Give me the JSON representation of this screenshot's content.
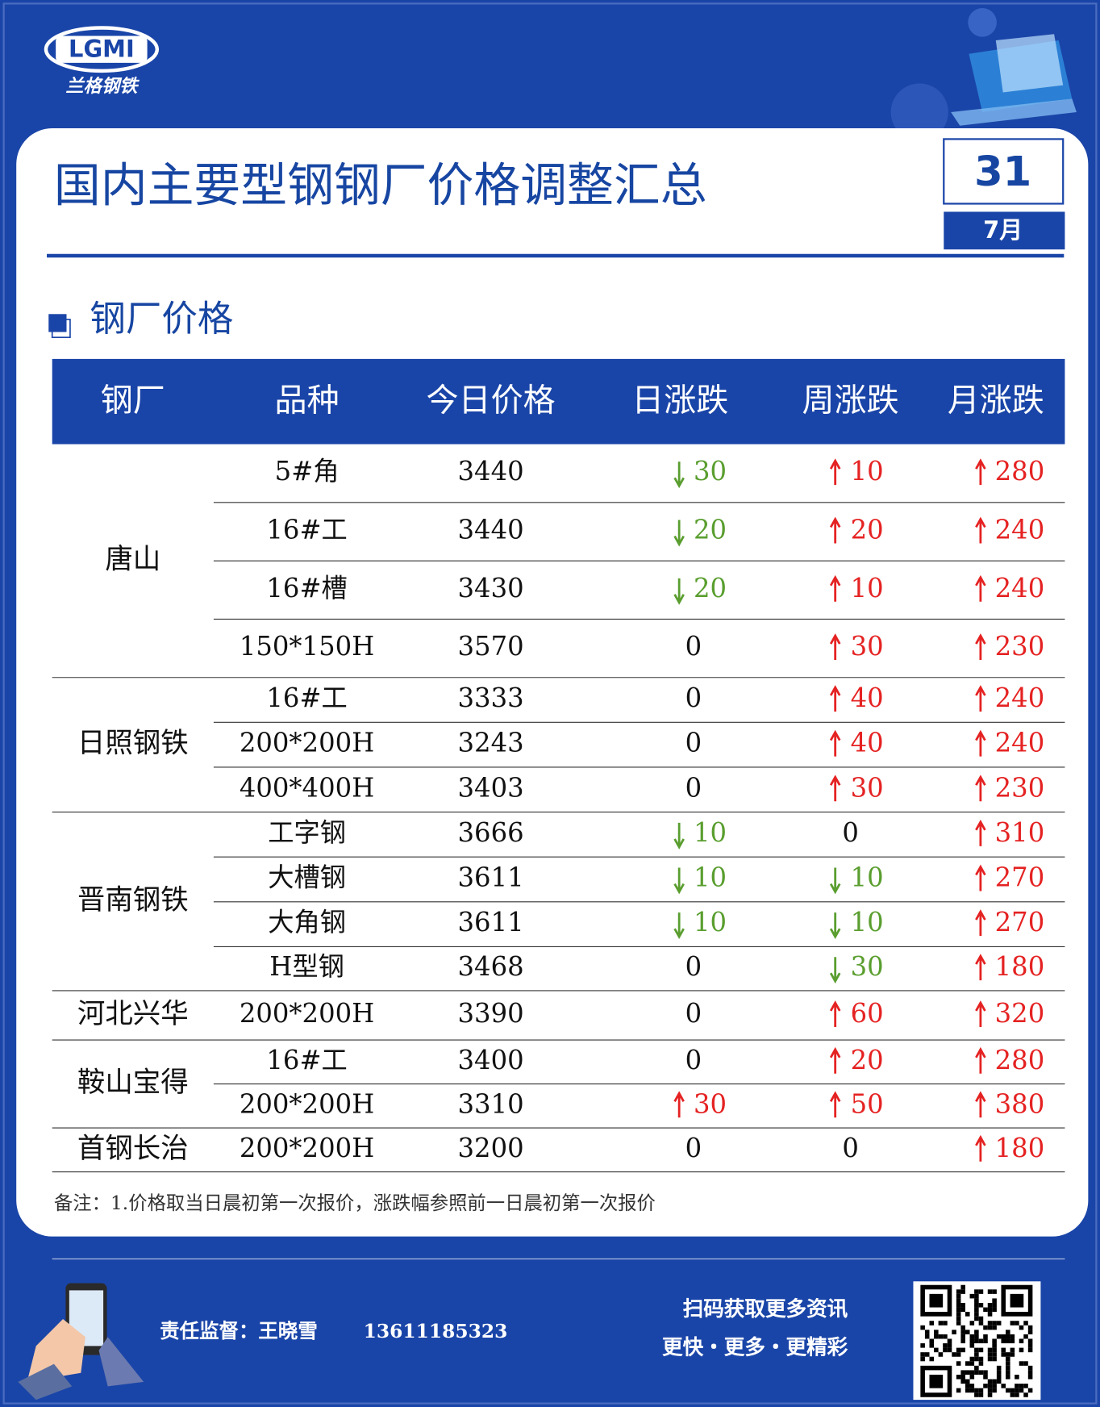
{
  "header": {
    "logo_text": "LGMI",
    "logo_sub": "兰格钢铁",
    "title": "国内主要型钢钢厂价格调整汇总",
    "day": "31",
    "month": "7月"
  },
  "section_title": "钢厂价格",
  "table": {
    "columns": [
      "钢厂",
      "品种",
      "今日价格",
      "日涨跌",
      "周涨跌",
      "月涨跌"
    ],
    "groups": [
      {
        "mill": "唐山",
        "rows": [
          [
            "5#角",
            "3440",
            {
              "text": "30",
              "trend": "down"
            },
            {
              "text": "10",
              "trend": "up"
            },
            {
              "text": "280",
              "trend": "up"
            }
          ],
          [
            "16#工",
            "3440",
            {
              "text": "20",
              "trend": "down"
            },
            {
              "text": "20",
              "trend": "up"
            },
            {
              "text": "240",
              "trend": "up"
            }
          ],
          [
            "16#槽",
            "3430",
            {
              "text": "20",
              "trend": "down"
            },
            {
              "text": "10",
              "trend": "up"
            },
            {
              "text": "240",
              "trend": "up"
            }
          ],
          [
            "150*150H",
            "3570",
            {
              "text": "0"
            },
            {
              "text": "30",
              "trend": "up"
            },
            {
              "text": "230",
              "trend": "up"
            }
          ]
        ]
      },
      {
        "mill": "日照钢铁",
        "rows": [
          [
            "16#工",
            "3333",
            {
              "text": "0"
            },
            {
              "text": "40",
              "trend": "up"
            },
            {
              "text": "240",
              "trend": "up"
            }
          ],
          [
            "200*200H",
            "3243",
            {
              "text": "0"
            },
            {
              "text": "40",
              "trend": "up"
            },
            {
              "text": "240",
              "trend": "up"
            }
          ],
          [
            "400*400H",
            "3403",
            {
              "text": "0"
            },
            {
              "text": "30",
              "trend": "up"
            },
            {
              "text": "230",
              "trend": "up"
            }
          ]
        ]
      },
      {
        "mill": "晋南钢铁",
        "rows": [
          [
            "工字钢",
            "3666",
            {
              "text": "10",
              "trend": "down"
            },
            {
              "text": "0"
            },
            {
              "text": "310",
              "trend": "up"
            }
          ],
          [
            "大槽钢",
            "3611",
            {
              "text": "10",
              "trend": "down"
            },
            {
              "text": "10",
              "trend": "down"
            },
            {
              "text": "270",
              "trend": "up"
            }
          ],
          [
            "大角钢",
            "3611",
            {
              "text": "10",
              "trend": "down"
            },
            {
              "text": "10",
              "trend": "down"
            },
            {
              "text": "270",
              "trend": "up"
            }
          ],
          [
            "H型钢",
            "3468",
            {
              "text": "0"
            },
            {
              "text": "30",
              "trend": "down"
            },
            {
              "text": "180",
              "trend": "up"
            }
          ]
        ]
      },
      {
        "mill": "河北兴华",
        "rows": [
          [
            "200*200H",
            "3390",
            {
              "text": "0"
            },
            {
              "text": "60",
              "trend": "up"
            },
            {
              "text": "320",
              "trend": "up"
            }
          ]
        ]
      },
      {
        "mill": "鞍山宝得",
        "rows": [
          [
            "16#工",
            "3400",
            {
              "text": "0"
            },
            {
              "text": "20",
              "trend": "up"
            },
            {
              "text": "280",
              "trend": "up"
            }
          ],
          [
            "200*200H",
            "3310",
            {
              "text": "30",
              "trend": "up"
            },
            {
              "text": "50",
              "trend": "up"
            },
            {
              "text": "380",
              "trend": "up"
            }
          ]
        ]
      },
      {
        "mill": "首钢长治",
        "rows": [
          [
            "200*200H",
            "3200",
            {
              "text": "0"
            },
            {
              "text": "0"
            },
            {
              "text": "180",
              "trend": "up"
            }
          ]
        ]
      }
    ]
  },
  "note": "备注：1.价格取当日晨初第一次报价，涨跌幅参照前一日晨初第一次报价",
  "footer": {
    "contact": "责任监督：王晓雪",
    "phone": "13611185323",
    "slogan1": "扫码获取更多资讯",
    "slogan2": "更快・更多・更精彩"
  }
}
